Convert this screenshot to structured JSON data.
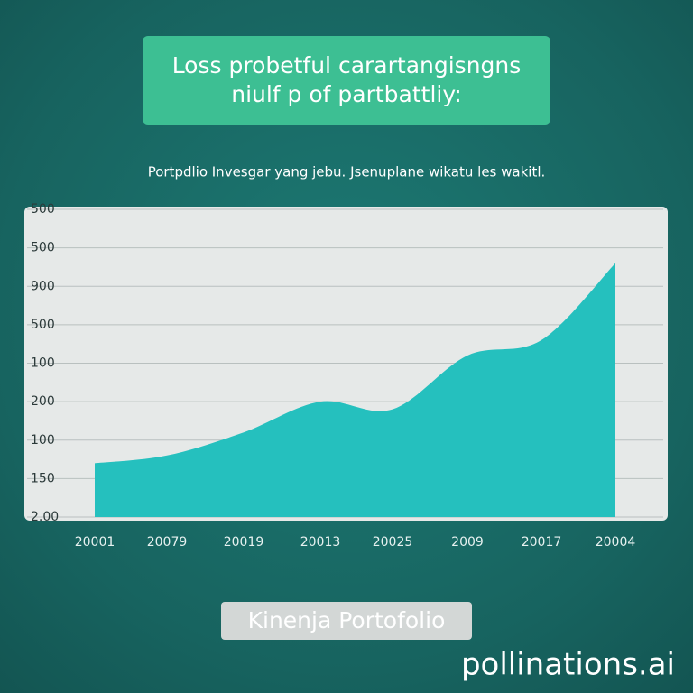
{
  "chart_data": {
    "type": "area",
    "title_lines": [
      "Loss probetful carartangisngns",
      "niulf  p of partbattliy:"
    ],
    "subtitle": "Portpdlio Invesgar yang jebu. Jsenuplane wikatu les wakitl.",
    "footer": "Kinenja Portofolio",
    "watermark": "pollinations.ai",
    "categories": [
      "20001",
      "20079",
      "20019",
      "20013",
      "20025",
      "2009",
      "20017",
      "20004"
    ],
    "values": [
      1.4,
      1.6,
      2.2,
      3.0,
      2.8,
      4.2,
      4.6,
      6.6
    ],
    "color": "#25c0be",
    "ylim": [
      0,
      8
    ],
    "yticks": [
      {
        "value": 0,
        "label": "2.00"
      },
      {
        "value": 1,
        "label": "150"
      },
      {
        "value": 2,
        "label": "100"
      },
      {
        "value": 3,
        "label": "200"
      },
      {
        "value": 4,
        "label": "100"
      },
      {
        "value": 5,
        "label": "500"
      },
      {
        "value": 6,
        "label": "900"
      },
      {
        "value": 7,
        "label": "500"
      },
      {
        "value": 8,
        "label": "500"
      }
    ],
    "grid": true
  }
}
